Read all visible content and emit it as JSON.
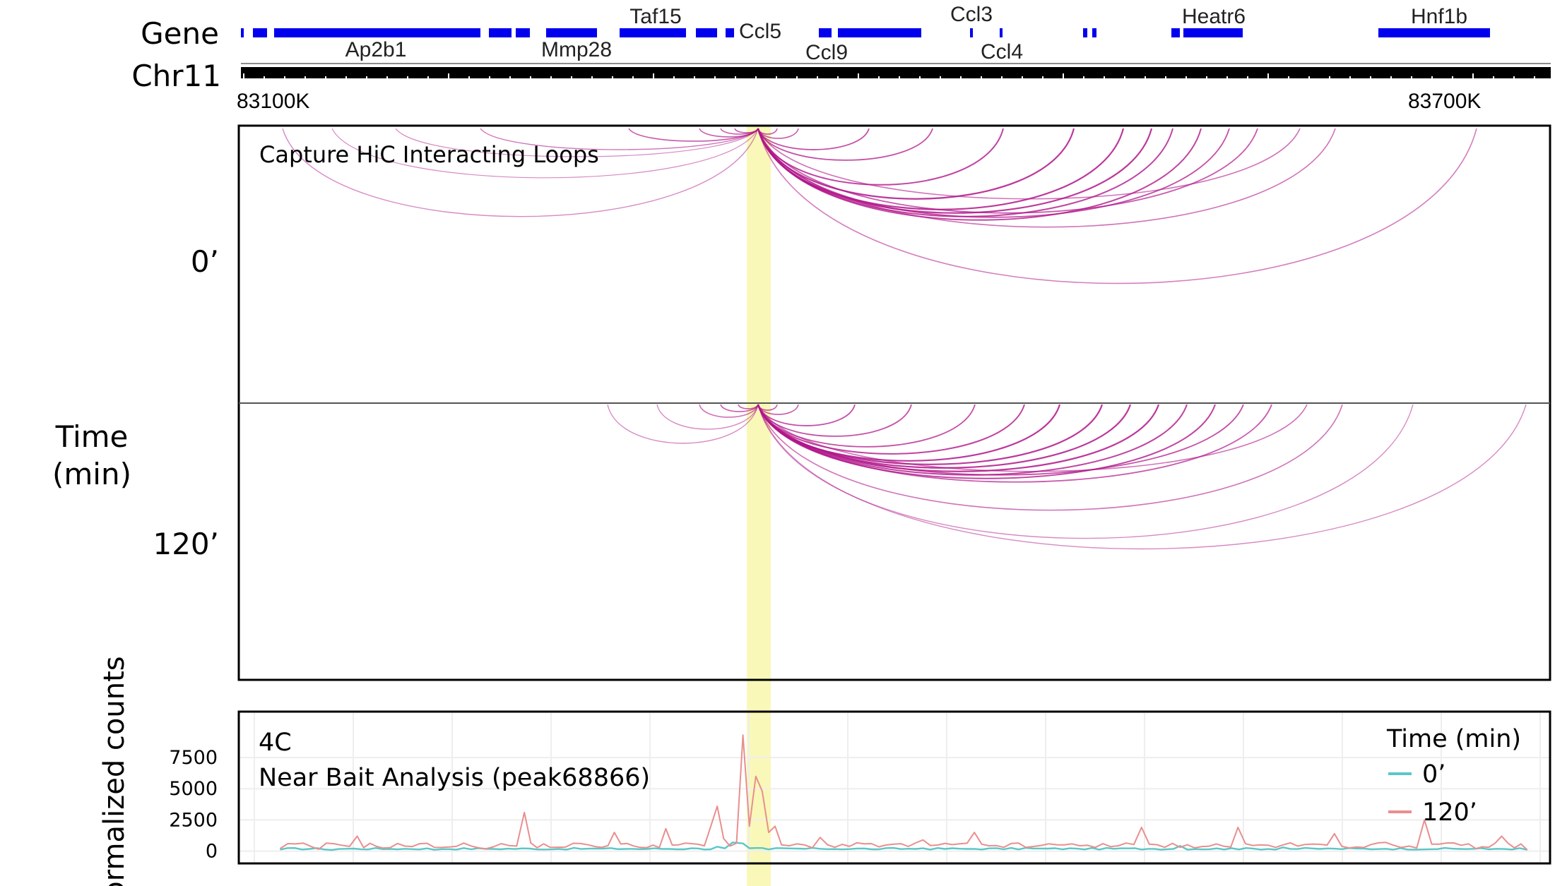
{
  "labels": {
    "gene_track": "Gene",
    "chrom_track": "Chr11",
    "coord_start": "83100K",
    "coord_end": "83700K",
    "panel_title": "Capture HiC Interacting Loops",
    "time_0": "0’",
    "time_120": "120’",
    "time_axis_line1": "Time",
    "time_axis_line2": "(min)"
  },
  "genes": [
    {
      "name": "Ap2b1",
      "row": "below"
    },
    {
      "name": "Mmp28",
      "row": "below"
    },
    {
      "name": "Taf15",
      "row": "above"
    },
    {
      "name": "Ccl5",
      "row": "right"
    },
    {
      "name": "Ccl9",
      "row": "below"
    },
    {
      "name": "Ccl3",
      "row": "above"
    },
    {
      "name": "Ccl4",
      "row": "below"
    },
    {
      "name": "Heatr6",
      "row": "above"
    },
    {
      "name": "Hnf1b",
      "row": "above"
    }
  ],
  "colors": {
    "gene": "#0000ee",
    "loop": "#b0158a",
    "highlight": "#f7f59a",
    "series_0": "#5cc6c6",
    "series_120": "#e88f8f"
  },
  "chart_data": {
    "type": "line",
    "title": "4C",
    "subtitle": "Near Bait Analysis (peak68866)",
    "ylabel": "Normalized counts",
    "yticks": [
      "0",
      "2500",
      "5000",
      "7500"
    ],
    "ylim": [
      -700,
      10500
    ],
    "legend_title": "Time (min)",
    "legend_position": "top-right",
    "series": [
      {
        "name": "0’",
        "color": "#5cc6c6",
        "points": [
          [
            0.02,
            120
          ],
          [
            0.06,
            90
          ],
          [
            0.1,
            160
          ],
          [
            0.14,
            110
          ],
          [
            0.18,
            180
          ],
          [
            0.22,
            140
          ],
          [
            0.26,
            200
          ],
          [
            0.3,
            160
          ],
          [
            0.34,
            230
          ],
          [
            0.36,
            360
          ],
          [
            0.372,
            700
          ],
          [
            0.38,
            620
          ],
          [
            0.39,
            250
          ],
          [
            0.4,
            140
          ],
          [
            0.44,
            190
          ],
          [
            0.48,
            150
          ],
          [
            0.52,
            230
          ],
          [
            0.56,
            180
          ],
          [
            0.6,
            260
          ],
          [
            0.64,
            200
          ],
          [
            0.68,
            220
          ],
          [
            0.7,
            180
          ],
          [
            0.7,
            180
          ],
          [
            0.72,
            420
          ],
          [
            0.76,
            240
          ],
          [
            0.8,
            300
          ],
          [
            0.84,
            200
          ],
          [
            0.88,
            190
          ],
          [
            0.92,
            160
          ],
          [
            0.96,
            150
          ],
          [
            0.99,
            110
          ]
        ]
      },
      {
        "name": "120’",
        "color": "#e88f8f",
        "points": [
          [
            0.02,
            200
          ],
          [
            0.05,
            150
          ],
          [
            0.08,
            1200
          ],
          [
            0.1,
            250
          ],
          [
            0.14,
            300
          ],
          [
            0.18,
            180
          ],
          [
            0.21,
            3100
          ],
          [
            0.23,
            300
          ],
          [
            0.26,
            500
          ],
          [
            0.28,
            1500
          ],
          [
            0.3,
            300
          ],
          [
            0.32,
            1800
          ],
          [
            0.34,
            600
          ],
          [
            0.355,
            2000
          ],
          [
            0.36,
            3600
          ],
          [
            0.365,
            1000
          ],
          [
            0.38,
            9300
          ],
          [
            0.385,
            2000
          ],
          [
            0.39,
            6000
          ],
          [
            0.395,
            4800
          ],
          [
            0.4,
            1500
          ],
          [
            0.405,
            2000
          ],
          [
            0.41,
            500
          ],
          [
            0.44,
            1100
          ],
          [
            0.48,
            600
          ],
          [
            0.52,
            900
          ],
          [
            0.56,
            1500
          ],
          [
            0.6,
            300
          ],
          [
            0.63,
            500
          ],
          [
            0.66,
            600
          ],
          [
            0.69,
            1900
          ],
          [
            0.72,
            300
          ],
          [
            0.765,
            1900
          ],
          [
            0.8,
            500
          ],
          [
            0.84,
            1400
          ],
          [
            0.88,
            700
          ],
          [
            0.91,
            2500
          ],
          [
            0.95,
            200
          ],
          [
            0.97,
            1200
          ],
          [
            0.99,
            100
          ]
        ]
      }
    ]
  }
}
